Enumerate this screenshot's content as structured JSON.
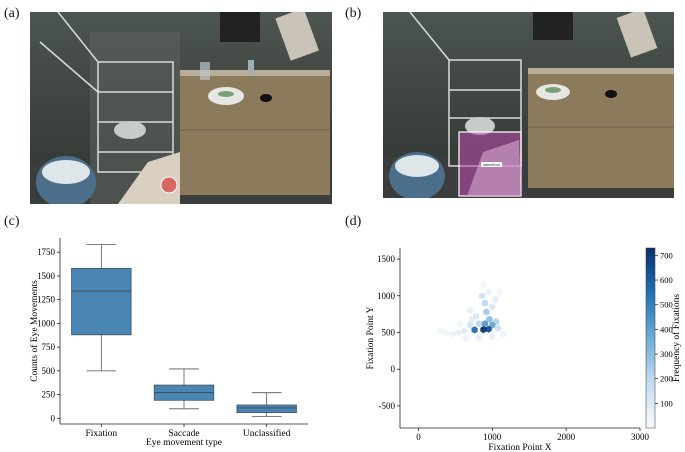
{
  "panels": {
    "a": "(a)",
    "b": "(b)",
    "c": "(c)",
    "d": "(d)"
  },
  "scene": {
    "bbox_tag": "salesfloor",
    "gaze_color": "#d9534f",
    "bbox_color": "#c04cb0"
  },
  "chart_data": [
    {
      "type": "box",
      "categories": [
        "Fixation",
        "Saccade",
        "Unclassified"
      ],
      "boxes": [
        {
          "min": 500,
          "q1": 880,
          "median": 1340,
          "q3": 1580,
          "max": 1830
        },
        {
          "min": 100,
          "q1": 190,
          "median": 270,
          "q3": 350,
          "max": 520
        },
        {
          "min": 20,
          "q1": 60,
          "median": 110,
          "q3": 140,
          "max": 270
        }
      ],
      "xlabel": "Eye movement type",
      "ylabel": "Counts of Eye Movements",
      "yticks": [
        0,
        250,
        500,
        750,
        1000,
        1250,
        1500,
        1750
      ],
      "ylim": [
        -60,
        1900
      ],
      "color": "#4a86b3"
    },
    {
      "type": "heatmap",
      "subtype": "hexbin",
      "xlabel": "Fixation Point X",
      "ylabel": "Fixation Point Y",
      "xticks": [
        0,
        1000,
        2000,
        3000
      ],
      "yticks": [
        -500,
        0,
        500,
        1000,
        1500
      ],
      "xlim": [
        -250,
        3000
      ],
      "ylim": [
        -800,
        1650
      ],
      "colorbar": {
        "label": "Frequency of Fixations",
        "ticks": [
          100,
          200,
          300,
          400,
          500,
          600,
          700
        ],
        "range": [
          0,
          730
        ],
        "colors": [
          "#f7fbff",
          "#c6dbef",
          "#6baed6",
          "#2171b5",
          "#08306b"
        ]
      },
      "bins": [
        {
          "x": 880,
          "y": 540,
          "v": 720
        },
        {
          "x": 950,
          "y": 545,
          "v": 640
        },
        {
          "x": 760,
          "y": 535,
          "v": 560
        },
        {
          "x": 1000,
          "y": 600,
          "v": 380
        },
        {
          "x": 960,
          "y": 680,
          "v": 300
        },
        {
          "x": 920,
          "y": 780,
          "v": 260
        },
        {
          "x": 900,
          "y": 900,
          "v": 200
        },
        {
          "x": 860,
          "y": 1000,
          "v": 140
        },
        {
          "x": 1050,
          "y": 650,
          "v": 220
        },
        {
          "x": 1080,
          "y": 560,
          "v": 160
        },
        {
          "x": 820,
          "y": 620,
          "v": 200
        },
        {
          "x": 700,
          "y": 600,
          "v": 120
        },
        {
          "x": 620,
          "y": 520,
          "v": 90
        },
        {
          "x": 540,
          "y": 500,
          "v": 70
        },
        {
          "x": 460,
          "y": 480,
          "v": 50
        },
        {
          "x": 380,
          "y": 500,
          "v": 30
        },
        {
          "x": 300,
          "y": 520,
          "v": 20
        },
        {
          "x": 780,
          "y": 720,
          "v": 110
        },
        {
          "x": 700,
          "y": 800,
          "v": 70
        },
        {
          "x": 1000,
          "y": 850,
          "v": 120
        },
        {
          "x": 1040,
          "y": 950,
          "v": 80
        },
        {
          "x": 950,
          "y": 1050,
          "v": 60
        },
        {
          "x": 880,
          "y": 1150,
          "v": 40
        },
        {
          "x": 1100,
          "y": 1050,
          "v": 30
        },
        {
          "x": 640,
          "y": 420,
          "v": 40
        },
        {
          "x": 820,
          "y": 430,
          "v": 60
        },
        {
          "x": 1000,
          "y": 440,
          "v": 70
        },
        {
          "x": 1150,
          "y": 480,
          "v": 40
        },
        {
          "x": 720,
          "y": 680,
          "v": 80
        },
        {
          "x": 560,
          "y": 620,
          "v": 40
        },
        {
          "x": 900,
          "y": 620,
          "v": 420
        }
      ]
    }
  ]
}
